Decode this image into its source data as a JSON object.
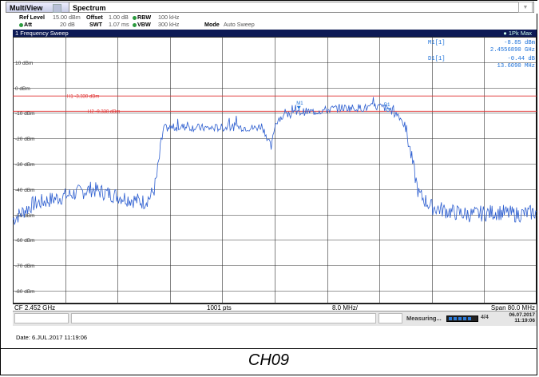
{
  "tabs": [
    {
      "label": "MultiView"
    },
    {
      "label": "Spectrum"
    }
  ],
  "params": {
    "ref_level_label": "Ref Level",
    "ref_level_value": "15.00 dBm",
    "offset_label": "Offset",
    "offset_value": "1.00 dB",
    "rbw_label": "RBW",
    "rbw_value": "100 kHz",
    "att_label": "Att",
    "att_value": "20 dB",
    "swt_label": "SWT",
    "swt_value": "1.07 ms",
    "vbw_label": "VBW",
    "vbw_value": "300 kHz",
    "mode_label": "Mode",
    "mode_value": "Auto Sweep"
  },
  "window": {
    "title": "1 Frequency Sweep",
    "trace_label": "1Pk Max"
  },
  "markers": {
    "m1_label": "M1[1]",
    "m1_level": "-8.85 dBm",
    "m1_freq": "2.4556890 GHz",
    "d1_label": "D1[1]",
    "d1_level": "-0.44 dB",
    "d1_freq": "13.6090 MHz",
    "m1_tag": "M1",
    "d1_tag": "D1"
  },
  "lines": {
    "h1_label": "H1 -3.330 dBm",
    "h2_label": "H2 -9.330 dBm"
  },
  "bottom": {
    "cf": "CF 2.452 GHz",
    "pts": "1001 pts",
    "div": "8.0 MHz/",
    "span": "Span 80.0 MHz"
  },
  "status": {
    "measuring": "Measuring...",
    "lxi": "4/4",
    "date": "06.07.2017",
    "time": "11:19:06"
  },
  "footer": {
    "date": "Date: 6.JUL.2017  11:19:06"
  },
  "caption": "CH09",
  "colors": {
    "title_bg": "#0d1a55",
    "trace": "#2e5fd0",
    "limit_lines": "#e03030",
    "marker_text": "#1a6fd8",
    "grid": "#000000"
  },
  "chart_data": {
    "type": "line",
    "title": "1 Frequency Sweep",
    "x_axis": {
      "center_ghz": 2.452,
      "span_mhz": 80.0,
      "div_mhz": 8.0,
      "points": 1001
    },
    "ylim": [
      -85,
      20
    ],
    "y_tick_labels": [
      "10 dBm",
      "0 dBm",
      "-10 dBm",
      "-20 dBm",
      "-30 dBm",
      "-40 dBm",
      "-50 dBm",
      "-60 dBm",
      "-70 dBm",
      "-80 dBm"
    ],
    "y_tick_values": [
      10,
      0,
      -10,
      -20,
      -30,
      -40,
      -50,
      -60,
      -70,
      -80
    ],
    "hlines": [
      {
        "name": "H1",
        "value": -3.33
      },
      {
        "name": "H2",
        "value": -9.33
      }
    ],
    "series": [
      {
        "name": "1Pk Max",
        "x_mhz": [
          -40,
          -37,
          -34,
          -31,
          -28,
          -25,
          -22,
          -20,
          -19,
          -18.4,
          -18,
          -17,
          -14,
          -10,
          -6,
          -3,
          -2,
          -1.4,
          -0.5,
          0,
          0.6,
          2,
          4.3,
          6,
          10,
          14,
          16,
          17.6,
          18.2,
          19,
          20,
          21,
          22,
          24,
          27,
          30,
          34,
          37,
          40
        ],
        "y_dbm": [
          -52,
          -46,
          -44,
          -42,
          -40,
          -42,
          -44,
          -45,
          -43,
          -40,
          -35,
          -16,
          -15.5,
          -16,
          -15.5,
          -16,
          -15,
          -18,
          -24,
          -15,
          -12,
          -11,
          -9.5,
          -9.5,
          -8,
          -8,
          -7.5,
          -8.5,
          -10,
          -11,
          -16,
          -29,
          -42,
          -47,
          -49,
          -50,
          -49,
          -50,
          -49
        ]
      }
    ],
    "markers": [
      {
        "name": "M1",
        "x_ghz": 2.455689,
        "y_dbm": -8.85
      },
      {
        "name": "D1",
        "delta_mhz": 13.609,
        "delta_db": -0.44
      }
    ]
  }
}
